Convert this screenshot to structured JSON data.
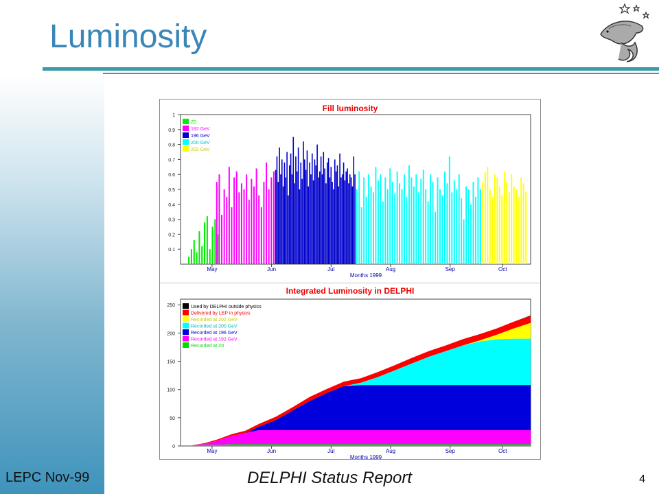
{
  "slide": {
    "title": "Luminosity",
    "footer_left": "LEPC Nov-99",
    "footer_center": "DELPHI Status Report",
    "page_number": "4",
    "accent_color": "#3a86b7",
    "rule_color": "#3a9aa7",
    "logo_icon": "dolphin-logo-icon"
  },
  "chart_data": [
    {
      "type": "bar",
      "title": "Fill luminosity",
      "xlabel": "Months 1999",
      "x_ticks": [
        "May",
        "Jun",
        "Jul",
        "Aug",
        "Sep",
        "Oct"
      ],
      "y_ticks": [
        "0.1",
        "0.2",
        "0.3",
        "0.4",
        "0.5",
        "0.6",
        "0.7",
        "0.8",
        "0.9",
        "1"
      ],
      "ylim": [
        0,
        1
      ],
      "legend": [
        {
          "name": "Z0",
          "color": "#00ee00"
        },
        {
          "name": "192 GeV",
          "color": "#ff00ff"
        },
        {
          "name": "196 GeV",
          "color": "#0000cc"
        },
        {
          "name": "200 GeV",
          "color": "#00ffff"
        },
        {
          "name": "202 GeV",
          "color": "#ffff00"
        }
      ],
      "legend_position": "top-left",
      "series": [
        {
          "name": "Z0",
          "values": [
            0.05,
            0.1,
            0.16,
            0.08,
            0.22,
            0.12,
            0.28,
            0.32,
            0.1,
            0.25,
            0.3,
            0.2
          ]
        },
        {
          "name": "192 GeV",
          "values": [
            0.55,
            0.6,
            0.33,
            0.5,
            0.45,
            0.65,
            0.38,
            0.58,
            0.62,
            0.48,
            0.54,
            0.5,
            0.6,
            0.43,
            0.57,
            0.52,
            0.64,
            0.46,
            0.38,
            0.55,
            0.68,
            0.5,
            0.58,
            0.62
          ]
        },
        {
          "name": "196 GeV",
          "values": [
            0.63,
            0.72,
            0.55,
            0.78,
            0.6,
            0.7,
            0.52,
            0.68,
            0.58,
            0.75,
            0.46,
            0.66,
            0.74,
            0.6,
            0.85,
            0.54,
            0.72,
            0.62,
            0.78,
            0.5,
            0.68,
            0.57,
            0.82,
            0.7,
            0.63,
            0.76,
            0.52,
            0.68,
            0.6,
            0.74,
            0.56,
            0.7,
            0.66,
            0.8,
            0.58,
            0.62,
            0.72,
            0.6,
            0.75,
            0.64,
            0.54,
            0.68,
            0.71,
            0.58,
            0.65,
            0.55,
            0.5,
            0.7,
            0.62,
            0.66,
            0.52,
            0.74,
            0.58,
            0.6,
            0.68,
            0.56,
            0.62,
            0.64,
            0.54,
            0.6,
            0.58,
            0.52,
            0.72,
            0.6
          ]
        },
        {
          "name": "200 GeV",
          "values": [
            0.5,
            0.62,
            0.38,
            0.58,
            0.45,
            0.6,
            0.52,
            0.48,
            0.65,
            0.56,
            0.6,
            0.42,
            0.58,
            0.5,
            0.64,
            0.55,
            0.47,
            0.62,
            0.54,
            0.5,
            0.6,
            0.45,
            0.66,
            0.58,
            0.52,
            0.6,
            0.48,
            0.57,
            0.63,
            0.5,
            0.42,
            0.6,
            0.55,
            0.35,
            0.58,
            0.5,
            0.46,
            0.62,
            0.54,
            0.72,
            0.48,
            0.56,
            0.5,
            0.6,
            0.44,
            0.3,
            0.52,
            0.5,
            0.4,
            0.55,
            0.45,
            0.58,
            0.5
          ]
        },
        {
          "name": "202 GeV",
          "values": [
            0.55,
            0.62,
            0.65,
            0.5,
            0.45,
            0.6,
            0.58,
            0.52,
            0.46,
            0.62,
            0.55,
            0.48,
            0.6,
            0.52,
            0.5,
            0.45,
            0.58,
            0.54,
            0.48
          ]
        }
      ]
    },
    {
      "type": "area",
      "title": "Integrated Luminosity in DELPHI",
      "xlabel": "Months 1999",
      "x_ticks": [
        "May",
        "Jun",
        "Jul",
        "Aug",
        "Sep",
        "Oct"
      ],
      "y_ticks": [
        "0",
        "50",
        "100",
        "150",
        "200",
        "250"
      ],
      "ylim": [
        0,
        260
      ],
      "legend_position": "top-left",
      "legend": [
        {
          "name": "Used by DELPHI outside physics",
          "color": "#000000"
        },
        {
          "name": "Delivered by LEP in physics",
          "color": "#ff0000"
        },
        {
          "name": "Recorded at 202 GeV",
          "color": "#ffff00"
        },
        {
          "name": "Recorded at 200 GeV",
          "color": "#00ffff"
        },
        {
          "name": "Recorded at 196 GeV",
          "color": "#0000dd"
        },
        {
          "name": "Recorded at 192 GeV",
          "color": "#ff00ff"
        },
        {
          "name": "Recorded at Z0",
          "color": "#00dd00"
        }
      ],
      "x": [
        0,
        0.04,
        0.08,
        0.12,
        0.16,
        0.2,
        0.25,
        0.3,
        0.35,
        0.4,
        0.45,
        0.5,
        0.55,
        0.6,
        0.65,
        0.7,
        0.75,
        0.8,
        0.85,
        0.9,
        0.95,
        1.0
      ],
      "stacks": [
        {
          "name": "Recorded at Z0",
          "values": [
            1,
            2,
            2,
            3,
            3,
            3,
            3,
            3,
            3,
            3,
            3,
            3,
            3,
            3,
            3,
            3,
            3,
            3,
            3,
            3,
            3,
            3
          ]
        },
        {
          "name": "Recorded at 192 GeV",
          "values": [
            0,
            2,
            8,
            15,
            20,
            25,
            25,
            25,
            25,
            25,
            25,
            25,
            25,
            25,
            25,
            25,
            25,
            25,
            25,
            25,
            25,
            25
          ]
        },
        {
          "name": "Recorded at 196 GeV",
          "values": [
            0,
            0,
            0,
            0,
            0,
            6,
            18,
            35,
            52,
            66,
            78,
            80,
            80,
            80,
            80,
            80,
            80,
            80,
            80,
            80,
            80,
            80
          ]
        },
        {
          "name": "Recorded at 200 GeV",
          "values": [
            0,
            0,
            0,
            0,
            0,
            0,
            0,
            0,
            0,
            0,
            0,
            4,
            14,
            26,
            38,
            50,
            60,
            70,
            77,
            81,
            82,
            82
          ]
        },
        {
          "name": "Recorded at 202 GeV",
          "values": [
            0,
            0,
            0,
            0,
            0,
            0,
            0,
            0,
            0,
            0,
            0,
            0,
            0,
            0,
            0,
            0,
            0,
            0,
            2,
            8,
            18,
            28
          ]
        },
        {
          "name": "Delivered by LEP in physics",
          "values": [
            0,
            1,
            2,
            3,
            4,
            5,
            6,
            6,
            7,
            7,
            8,
            8,
            9,
            9,
            10,
            10,
            10,
            11,
            11,
            11,
            12,
            12
          ]
        },
        {
          "name": "Used by DELPHI outside physics",
          "values": [
            0,
            0,
            0,
            0,
            0,
            0,
            0,
            0,
            0,
            0,
            0,
            0,
            0,
            0,
            0,
            0,
            0,
            0,
            0,
            0,
            0,
            1
          ]
        }
      ]
    }
  ]
}
